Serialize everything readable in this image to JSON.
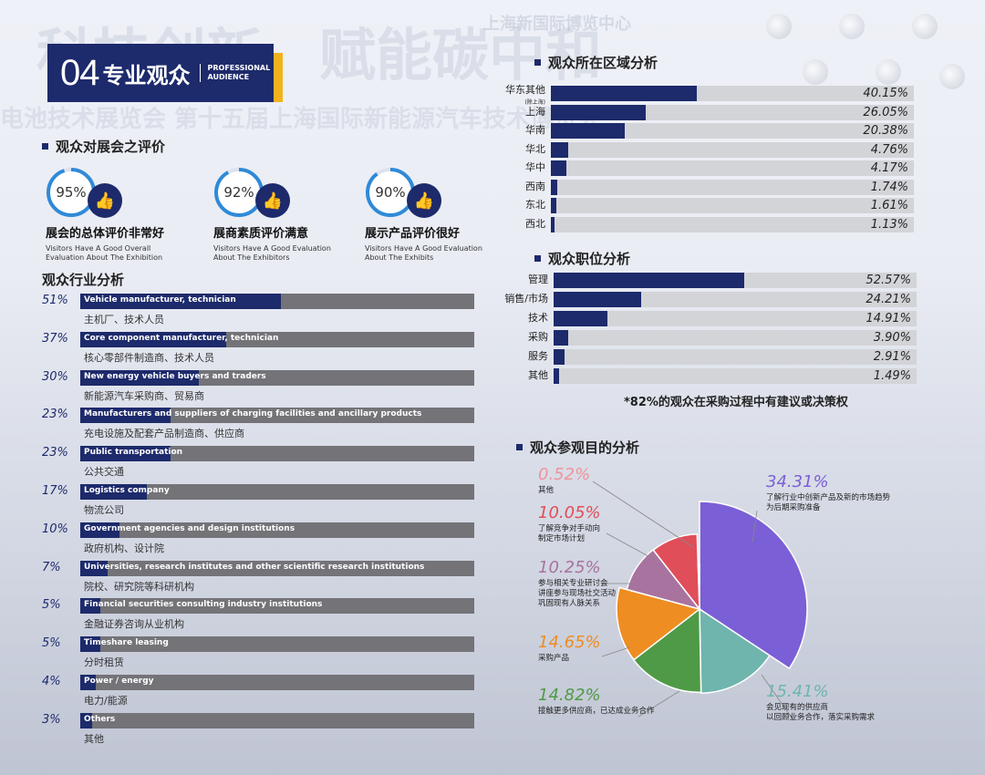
{
  "header": {
    "number": "04",
    "title": "专业观众",
    "subtitle_line1": "PROFESSIONAL",
    "subtitle_line2": "AUDIENCE"
  },
  "background": {
    "line1": "科技创新，赋能碳中和",
    "line2": "电池技术展览会 第十五届上海国际新能源汽车技术博览会",
    "top_sign": "上海新国际博览中心"
  },
  "evaluation": {
    "title": "观众对展会之评价",
    "items": [
      {
        "pct": "95%",
        "value": 95,
        "cn": "展会的总体评价非常好",
        "en": "Visitors Have A Good Overall Evaluation About The Exhibition"
      },
      {
        "pct": "92%",
        "value": 92,
        "cn": "展商素质评价满意",
        "en": "Visitors Have A Good Evaluation About The Exhibitors"
      },
      {
        "pct": "90%",
        "value": 90,
        "cn": "展示产品评价很好",
        "en": "Visitors Have A Good Evaluation About The Exhibits"
      }
    ]
  },
  "industry": {
    "title": "观众行业分析",
    "items": [
      {
        "pct": "51%",
        "value": 51,
        "en": "Vehicle manufacturer, technician",
        "cn": "主机厂、技术人员"
      },
      {
        "pct": "37%",
        "value": 37,
        "en": "Core component manufacturer, technician",
        "cn": "核心零部件制造商、技术人员"
      },
      {
        "pct": "30%",
        "value": 30,
        "en": "New energy vehicle buyers and traders",
        "cn": "新能源汽车采购商、贸易商"
      },
      {
        "pct": "23%",
        "value": 23,
        "en": "Manufacturers and suppliers of charging facilities and ancillary products",
        "cn": "充电设施及配套产品制造商、供应商"
      },
      {
        "pct": "23%",
        "value": 23,
        "en": "Public transportation",
        "cn": "公共交通"
      },
      {
        "pct": "17%",
        "value": 17,
        "en": "Logistics company",
        "cn": "物流公司"
      },
      {
        "pct": "10%",
        "value": 10,
        "en": "Government agencies and design institutions",
        "cn": "政府机构、设计院"
      },
      {
        "pct": "7%",
        "value": 7,
        "en": "Universities, research institutes and other scientific research institutions",
        "cn": "院校、研究院等科研机构"
      },
      {
        "pct": "5%",
        "value": 5,
        "en": "Financial securities consulting industry institutions",
        "cn": "金融证券咨询从业机构"
      },
      {
        "pct": "5%",
        "value": 5,
        "en": "Timeshare leasing",
        "cn": "分时租赁"
      },
      {
        "pct": "4%",
        "value": 4,
        "en": "Power / energy",
        "cn": "电力/能源"
      },
      {
        "pct": "3%",
        "value": 3,
        "en": "Others",
        "cn": "其他"
      }
    ]
  },
  "region": {
    "title": "观众所在区域分析",
    "items": [
      {
        "label": "华东其他\n(除上海)",
        "value": 40.15,
        "text": "40.15%"
      },
      {
        "label": "上海",
        "value": 26.05,
        "text": "26.05%"
      },
      {
        "label": "华南",
        "value": 20.38,
        "text": "20.38%"
      },
      {
        "label": "华北",
        "value": 4.76,
        "text": "4.76%"
      },
      {
        "label": "华中",
        "value": 4.17,
        "text": "4.17%"
      },
      {
        "label": "西南",
        "value": 1.74,
        "text": "1.74%"
      },
      {
        "label": "东北",
        "value": 1.61,
        "text": "1.61%"
      },
      {
        "label": "西北",
        "value": 1.13,
        "text": "1.13%"
      }
    ]
  },
  "position": {
    "title": "观众职位分析",
    "items": [
      {
        "label": "管理",
        "value": 52.57,
        "text": "52.57%"
      },
      {
        "label": "销售/市场",
        "value": 24.21,
        "text": "24.21%"
      },
      {
        "label": "技术",
        "value": 14.91,
        "text": "14.91%"
      },
      {
        "label": "采购",
        "value": 3.9,
        "text": "3.90%"
      },
      {
        "label": "服务",
        "value": 2.91,
        "text": "2.91%"
      },
      {
        "label": "其他",
        "value": 1.49,
        "text": "1.49%"
      }
    ],
    "note": "*82%的观众在采购过程中有建议或决策权"
  },
  "purpose": {
    "title": "观众参观目的分析",
    "colors": {
      "new_products": "#7b5fd6",
      "existing_suppliers": "#6fb5ad",
      "more_suppliers": "#4f9a46",
      "purchasing": "#ee8d22",
      "seminars": "#a8739f",
      "competitors": "#e04e59",
      "others": "#f0939a"
    }
  },
  "chart_data": [
    {
      "type": "bar",
      "orientation": "horizontal",
      "title": "观众行业分析",
      "categories": [
        "Vehicle manufacturer, technician",
        "Core component manufacturer, technician",
        "New energy vehicle buyers and traders",
        "Manufacturers and suppliers of charging facilities and ancillary products",
        "Public transportation",
        "Logistics company",
        "Government agencies and design institutions",
        "Universities, research institutes and other scientific research institutions",
        "Financial securities consulting industry institutions",
        "Timeshare leasing",
        "Power / energy",
        "Others"
      ],
      "values": [
        51,
        37,
        30,
        23,
        23,
        17,
        10,
        7,
        5,
        5,
        4,
        3
      ],
      "xlim": [
        0,
        100
      ]
    },
    {
      "type": "bar",
      "orientation": "horizontal",
      "title": "观众所在区域分析",
      "categories": [
        "华东其他(除上海)",
        "上海",
        "华南",
        "华北",
        "华中",
        "西南",
        "东北",
        "西北"
      ],
      "values": [
        40.15,
        26.05,
        20.38,
        4.76,
        4.17,
        1.74,
        1.61,
        1.13
      ],
      "xlim": [
        0,
        100
      ]
    },
    {
      "type": "bar",
      "orientation": "horizontal",
      "title": "观众职位分析",
      "categories": [
        "管理",
        "销售/市场",
        "技术",
        "采购",
        "服务",
        "其他"
      ],
      "values": [
        52.57,
        24.21,
        14.91,
        3.9,
        2.91,
        1.49
      ],
      "xlim": [
        0,
        100
      ]
    },
    {
      "type": "pie",
      "variant": "rose",
      "title": "观众参观目的分析",
      "slices": [
        {
          "label": "了解行业中创新产品及新的市场趋势\n为后期采购准备",
          "value": 34.31,
          "text": "34.31%",
          "color": "#7b5fd6"
        },
        {
          "label": "会见现有的供应商\n以回顾业务合作，落实采购需求",
          "value": 15.41,
          "text": "15.41%",
          "color": "#6fb5ad"
        },
        {
          "label": "接触更多供应商，已达成业务合作",
          "value": 14.82,
          "text": "14.82%",
          "color": "#4f9a46"
        },
        {
          "label": "采购产品",
          "value": 14.65,
          "text": "14.65%",
          "color": "#ee8d22"
        },
        {
          "label": "参与相关专业研讨会\n讲座参与现场社交活动\n巩固现有人脉关系",
          "value": 10.25,
          "text": "10.25%",
          "color": "#a8739f"
        },
        {
          "label": "了解竞争对手动向\n制定市场计划",
          "value": 10.05,
          "text": "10.05%",
          "color": "#e04e59"
        },
        {
          "label": "其他",
          "value": 0.52,
          "text": "0.52%",
          "color": "#f0939a"
        }
      ]
    }
  ]
}
